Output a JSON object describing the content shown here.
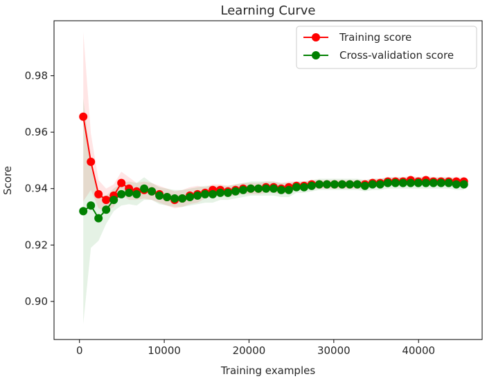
{
  "chart_data": {
    "type": "line",
    "title": "Learning Curve",
    "xlabel": "Training examples",
    "ylabel": "Score",
    "xlim": [
      -3000,
      47500
    ],
    "ylim": [
      0.8865,
      0.9995
    ],
    "xticks": [
      0,
      10000,
      20000,
      30000,
      40000
    ],
    "xtick_labels": [
      "0",
      "10000",
      "20000",
      "30000",
      "40000"
    ],
    "yticks": [
      0.9,
      0.92,
      0.94,
      0.96,
      0.98
    ],
    "ytick_labels": [
      "0.90",
      "0.92",
      "0.94",
      "0.96",
      "0.98"
    ],
    "grid": false,
    "legend_position": "top-right",
    "x": [
      451,
      1349,
      2247,
      3145,
      4043,
      4941,
      5839,
      6737,
      7635,
      8533,
      9431,
      10329,
      11227,
      12125,
      13023,
      13921,
      14819,
      15717,
      16615,
      17513,
      18411,
      19309,
      20207,
      21105,
      22003,
      22901,
      23799,
      24697,
      25595,
      26493,
      27391,
      28289,
      29187,
      30085,
      30983,
      31881,
      32779,
      33677,
      34575,
      35473,
      36371,
      37269,
      38167,
      39065,
      39963,
      40861,
      41759,
      42657,
      43555,
      44453,
      45351
    ],
    "series": [
      {
        "name": "Training score",
        "color": "#ff0000",
        "values": [
          0.9655,
          0.9495,
          0.938,
          0.936,
          0.9375,
          0.942,
          0.94,
          0.939,
          0.9395,
          0.939,
          0.938,
          0.937,
          0.936,
          0.9365,
          0.9375,
          0.938,
          0.9385,
          0.9395,
          0.9395,
          0.939,
          0.9395,
          0.94,
          0.94,
          0.94,
          0.9405,
          0.9405,
          0.94,
          0.9405,
          0.941,
          0.941,
          0.9415,
          0.9415,
          0.9415,
          0.9415,
          0.9415,
          0.9415,
          0.9415,
          0.9415,
          0.942,
          0.942,
          0.9425,
          0.9425,
          0.9425,
          0.943,
          0.9425,
          0.943,
          0.9425,
          0.9425,
          0.9425,
          0.9425,
          0.9425
        ],
        "band_halfwidth": [
          0.03,
          0.01,
          0.005,
          0.004,
          0.004,
          0.004,
          0.004,
          0.003,
          0.003,
          0.003,
          0.003,
          0.003,
          0.003,
          0.003,
          0.003,
          0.003,
          0.002,
          0.002,
          0.002,
          0.002,
          0.002,
          0.002,
          0.002,
          0.002,
          0.002,
          0.002,
          0.002,
          0.002,
          0.0015,
          0.0015,
          0.0015,
          0.0015,
          0.0015,
          0.0015,
          0.0015,
          0.0015,
          0.0015,
          0.0015,
          0.0015,
          0.0015,
          0.0015,
          0.0015,
          0.0015,
          0.0015,
          0.0015,
          0.0015,
          0.0015,
          0.0015,
          0.0015,
          0.0015,
          0.0015
        ]
      },
      {
        "name": "Cross-validation score",
        "color": "#008000",
        "values": [
          0.932,
          0.934,
          0.9295,
          0.9325,
          0.936,
          0.938,
          0.9385,
          0.938,
          0.94,
          0.939,
          0.9375,
          0.937,
          0.9365,
          0.9365,
          0.937,
          0.9375,
          0.938,
          0.938,
          0.9385,
          0.9385,
          0.939,
          0.9395,
          0.94,
          0.94,
          0.94,
          0.94,
          0.9395,
          0.9395,
          0.9405,
          0.9405,
          0.941,
          0.9415,
          0.9415,
          0.9415,
          0.9415,
          0.9415,
          0.9415,
          0.941,
          0.9415,
          0.9415,
          0.942,
          0.942,
          0.942,
          0.942,
          0.942,
          0.942,
          0.942,
          0.942,
          0.942,
          0.9415,
          0.9415
        ],
        "band_halfwidth": [
          0.04,
          0.015,
          0.008,
          0.005,
          0.004,
          0.004,
          0.004,
          0.004,
          0.004,
          0.003,
          0.003,
          0.003,
          0.003,
          0.003,
          0.003,
          0.003,
          0.003,
          0.003,
          0.0025,
          0.0025,
          0.0025,
          0.0025,
          0.0025,
          0.0025,
          0.0025,
          0.0025,
          0.0025,
          0.0025,
          0.002,
          0.002,
          0.002,
          0.002,
          0.002,
          0.002,
          0.002,
          0.002,
          0.002,
          0.002,
          0.002,
          0.002,
          0.002,
          0.002,
          0.002,
          0.002,
          0.002,
          0.002,
          0.002,
          0.002,
          0.002,
          0.002,
          0.002
        ]
      }
    ]
  }
}
